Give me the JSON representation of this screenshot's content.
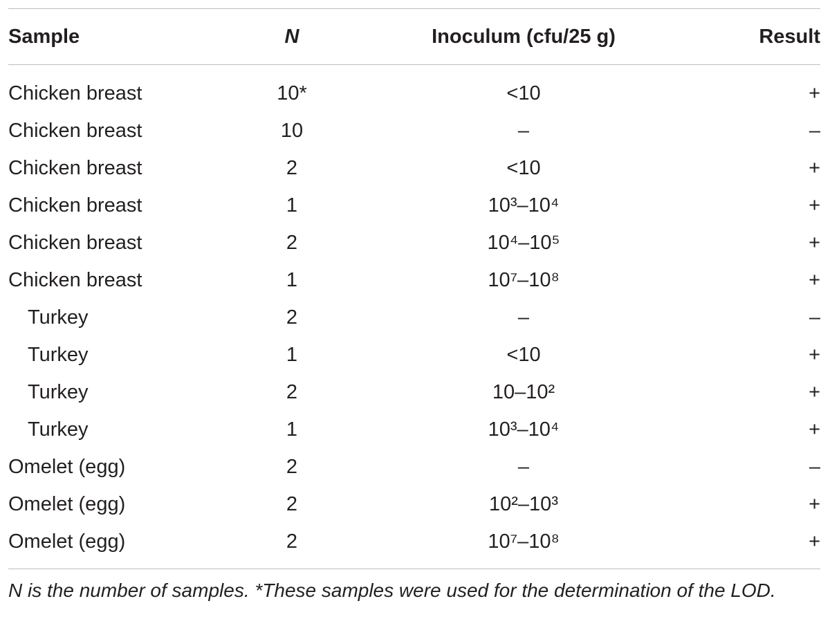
{
  "table": {
    "headers": {
      "sample": "Sample",
      "n": "N",
      "inoculum": "Inoculum (cfu/25 g)",
      "result": "Result"
    },
    "rows": [
      {
        "sample": "Chicken breast",
        "n": "10*",
        "inoculum": "<10",
        "result": "+",
        "indent": false
      },
      {
        "sample": "Chicken breast",
        "n": "10",
        "inoculum": "–",
        "result": "–",
        "indent": false
      },
      {
        "sample": "Chicken breast",
        "n": "2",
        "inoculum": "<10",
        "result": "+",
        "indent": false
      },
      {
        "sample": "Chicken breast",
        "n": "1",
        "inoculum": "10³–10⁴",
        "result": "+",
        "indent": false
      },
      {
        "sample": "Chicken breast",
        "n": "2",
        "inoculum": "10⁴–10⁵",
        "result": "+",
        "indent": false
      },
      {
        "sample": "Chicken breast",
        "n": "1",
        "inoculum": "10⁷–10⁸",
        "result": "+",
        "indent": false
      },
      {
        "sample": "Turkey",
        "n": "2",
        "inoculum": "–",
        "result": "–",
        "indent": true
      },
      {
        "sample": "Turkey",
        "n": "1",
        "inoculum": "<10",
        "result": "+",
        "indent": true
      },
      {
        "sample": "Turkey",
        "n": "2",
        "inoculum": "10–10²",
        "result": "+",
        "indent": true
      },
      {
        "sample": "Turkey",
        "n": "1",
        "inoculum": "10³–10⁴",
        "result": "+",
        "indent": true
      },
      {
        "sample": "Omelet (egg)",
        "n": "2",
        "inoculum": "–",
        "result": "–",
        "indent": false
      },
      {
        "sample": "Omelet (egg)",
        "n": "2",
        "inoculum": "10²–10³",
        "result": "+",
        "indent": false
      },
      {
        "sample": "Omelet (egg)",
        "n": "2",
        "inoculum": "10⁷–10⁸",
        "result": "+",
        "indent": false
      }
    ]
  },
  "footnote": "N is the number of samples. *These samples were used for the determination of the LOD."
}
